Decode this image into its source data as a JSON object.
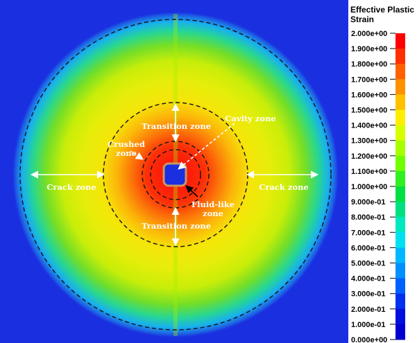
{
  "legend": {
    "title_line1": "Effective Plastic",
    "title_line2": " Strain",
    "ticks": [
      "2.000e+00",
      "1.900e+00",
      "1.800e+00",
      "1.700e+00",
      "1.600e+00",
      "1.500e+00",
      "1.400e+00",
      "1.300e+00",
      "1.200e+00",
      "1.100e+00",
      "1.000e+00",
      "9.000e-01",
      "8.000e-01",
      "7.000e-01",
      "6.000e-01",
      "5.000e-01",
      "4.000e-01",
      "3.000e-01",
      "2.000e-01",
      "1.000e-01",
      "0.000e+00"
    ],
    "colors": [
      "#ff0000",
      "#ff3000",
      "#ff6000",
      "#ff9000",
      "#ffc000",
      "#ffee00",
      "#d8ff00",
      "#a8ff00",
      "#70ff00",
      "#30f020",
      "#00e040",
      "#00e080",
      "#00e8c0",
      "#00e0f0",
      "#00b8ff",
      "#0090ff",
      "#0060ff",
      "#0030f0",
      "#0010e0",
      "#0000d0"
    ]
  },
  "labels": {
    "transition_top": "Transition zone",
    "transition_bottom": "Transition zone",
    "cavity": "Cavity zone",
    "crushed_1": "Crushed",
    "crushed_2": "zone",
    "crack_left": "Crack zone",
    "crack_right": "Crack zone",
    "fluid_1": "Fluid-like",
    "fluid_2": "zone"
  }
}
